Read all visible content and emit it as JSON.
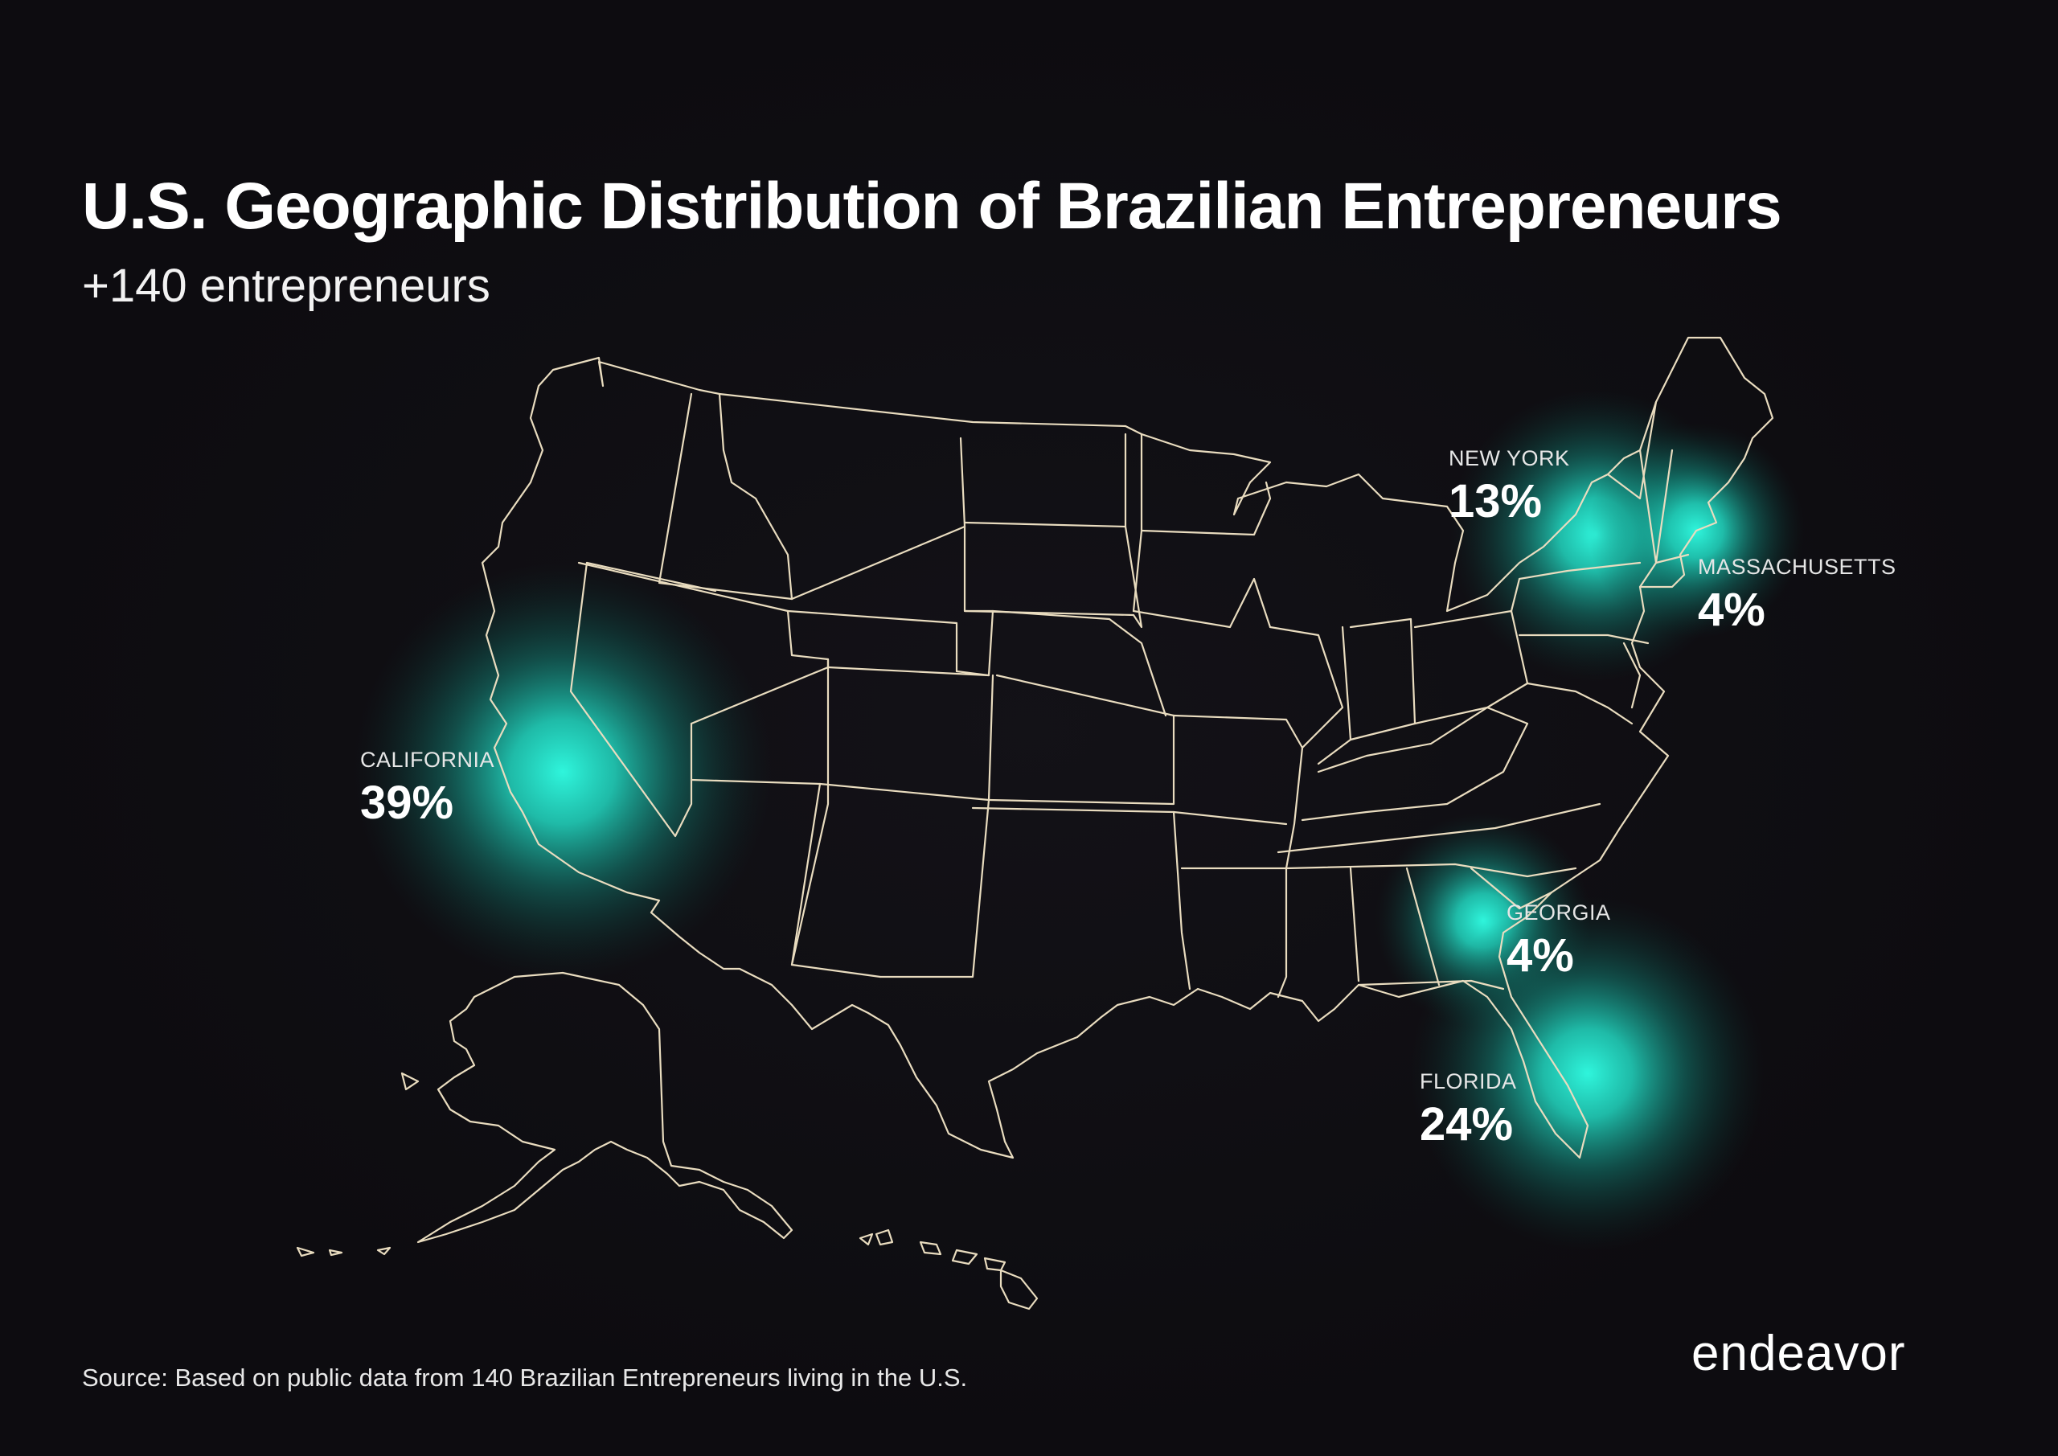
{
  "title": "U.S. Geographic Distribution of Brazilian Entrepreneurs",
  "subtitle": "+140 entrepreneurs",
  "source": "Source: Based on public data from 140 Brazilian Entrepreneurs living in the U.S.",
  "logo": "endeavor",
  "colors": {
    "background": "#0d0c10",
    "state_lines": "#e9dcbf",
    "glow": "#29f2d6",
    "text": "#ffffff"
  },
  "chart_data": {
    "type": "map",
    "title": "U.S. Geographic Distribution of Brazilian Entrepreneurs",
    "total_entrepreneurs": "+140",
    "regions": [
      {
        "state": "CALIFORNIA",
        "share": "39%",
        "value": 39
      },
      {
        "state": "NEW YORK",
        "share": "13%",
        "value": 13
      },
      {
        "state": "MASSACHUSETTS",
        "share": "4%",
        "value": 4
      },
      {
        "state": "GEORGIA",
        "share": "4%",
        "value": 4
      },
      {
        "state": "FLORIDA",
        "share": "24%",
        "value": 24
      }
    ]
  }
}
